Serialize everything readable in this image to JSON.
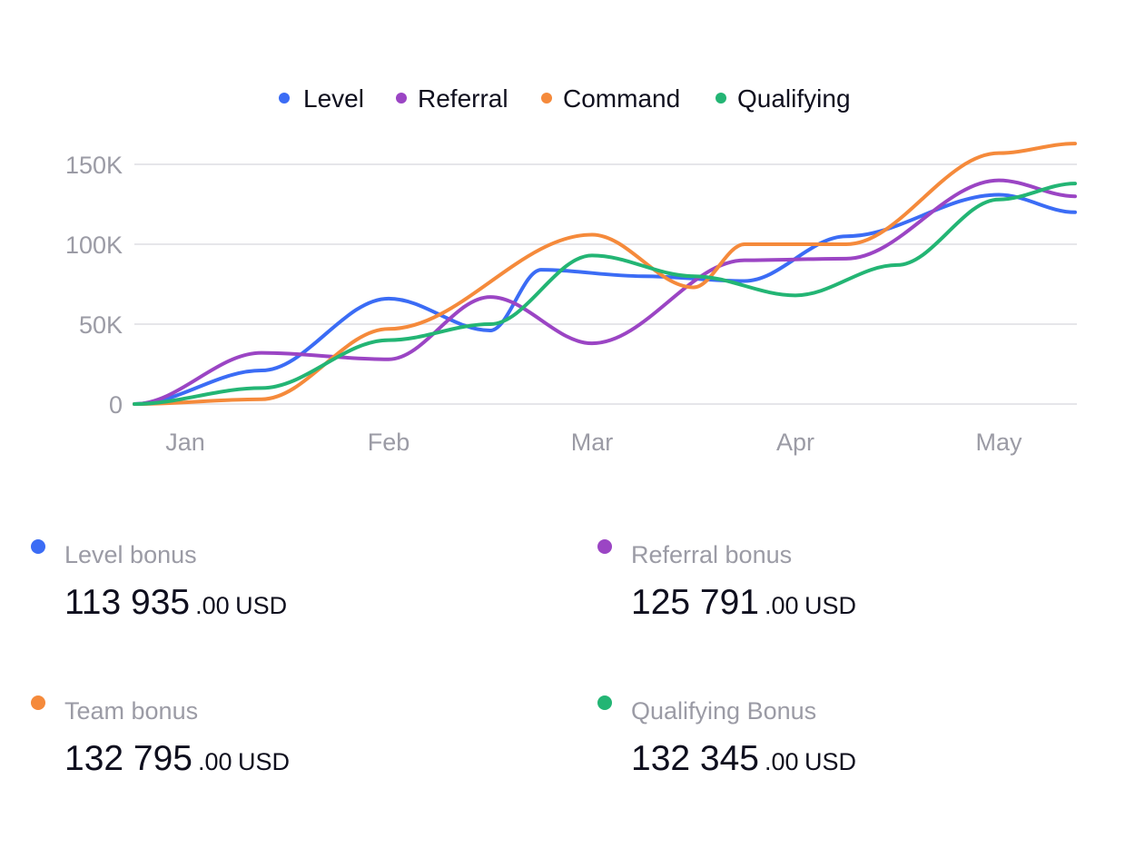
{
  "colors": {
    "level": "#3b6cf5",
    "referral": "#9b45c4",
    "command": "#f58a3b",
    "qualifying": "#23b574",
    "grid": "#e6e6ea",
    "tick": "#9b9ba5",
    "text": "#0f0f1e"
  },
  "chart_data": {
    "type": "line",
    "legend": [
      "Level",
      "Referral",
      "Command",
      "Qualifying"
    ],
    "legend_position": "top-center",
    "grid": true,
    "ylim": [
      0,
      150000
    ],
    "yticks": [
      0,
      50000,
      100000,
      150000
    ],
    "ytick_labels": [
      "0",
      "50K",
      "100K",
      "150K"
    ],
    "xtick_labels": [
      "Jan",
      "Feb",
      "Mar",
      "Apr",
      "May"
    ],
    "x": [
      0,
      0.625,
      1.25,
      1.875,
      2.5,
      3.125,
      3.75,
      4.375,
      5.0
    ],
    "series": [
      {
        "name": "Level",
        "color_key": "level",
        "values": [
          0,
          21000,
          66000,
          46000,
          84000,
          80000,
          77000,
          105000,
          131000,
          120000
        ],
        "x": [
          0,
          0.625,
          1.25,
          1.75,
          2.0,
          2.5,
          3.0,
          3.5,
          4.25,
          4.625
        ]
      },
      {
        "name": "Referral",
        "color_key": "referral",
        "values": [
          0,
          32000,
          28000,
          67000,
          38000,
          90000,
          91000,
          140000,
          130000
        ],
        "x": [
          0,
          0.625,
          1.25,
          1.75,
          2.25,
          3.0,
          3.5,
          4.25,
          4.625
        ]
      },
      {
        "name": "Command",
        "color_key": "command",
        "values": [
          0,
          3000,
          47000,
          106000,
          73000,
          100000,
          100000,
          157000,
          163000
        ],
        "x": [
          0,
          0.625,
          1.25,
          2.25,
          2.75,
          3.0,
          3.5,
          4.25,
          4.625
        ]
      },
      {
        "name": "Qualifying",
        "color_key": "qualifying",
        "values": [
          0,
          10000,
          40000,
          50000,
          93000,
          80000,
          68000,
          87000,
          128000,
          138000
        ],
        "x": [
          0,
          0.625,
          1.25,
          1.75,
          2.25,
          2.75,
          3.25,
          3.75,
          4.25,
          4.625
        ]
      }
    ]
  },
  "stats": [
    {
      "key": "level",
      "label": "Level bonus",
      "int": "113 935",
      "dec": ".00",
      "cur": "USD"
    },
    {
      "key": "referral",
      "label": "Referral bonus",
      "int": "125 791",
      "dec": ".00",
      "cur": "USD"
    },
    {
      "key": "command",
      "label": "Team bonus",
      "int": "132 795",
      "dec": ".00",
      "cur": "USD"
    },
    {
      "key": "qualifying",
      "label": "Qualifying Bonus",
      "int": "132 345",
      "dec": ".00",
      "cur": "USD"
    }
  ]
}
